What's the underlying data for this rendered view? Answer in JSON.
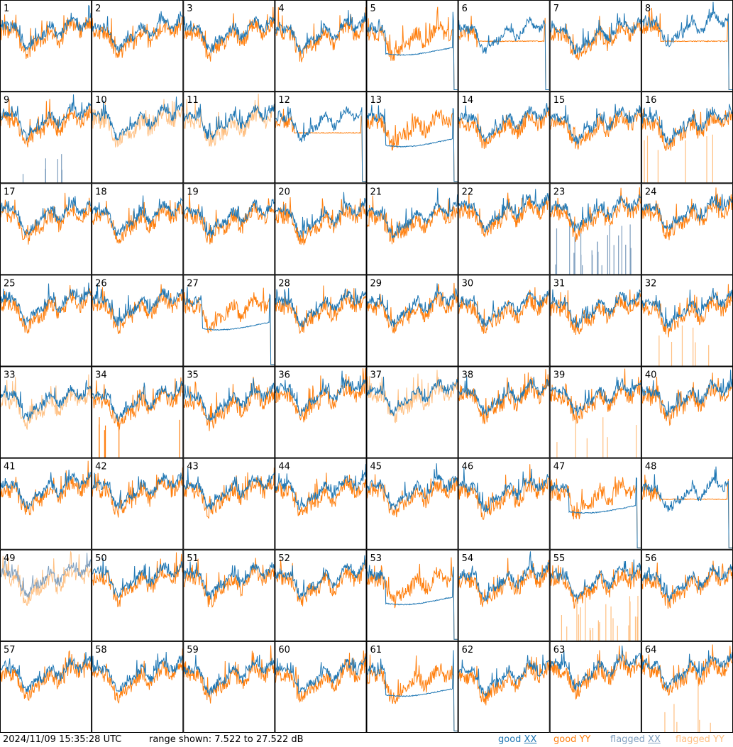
{
  "chart_data": {
    "type": "line",
    "layout": "small-multiples",
    "panel_count": 64,
    "panels": [
      "1",
      "2",
      "3",
      "4",
      "5",
      "6",
      "7",
      "8",
      "9",
      "10",
      "11",
      "12",
      "13",
      "14",
      "15",
      "16",
      "17",
      "18",
      "19",
      "20",
      "21",
      "22",
      "23",
      "24",
      "25",
      "26",
      "27",
      "28",
      "29",
      "30",
      "31",
      "32",
      "33",
      "34",
      "35",
      "36",
      "37",
      "38",
      "39",
      "40",
      "41",
      "42",
      "43",
      "44",
      "45",
      "46",
      "47",
      "48",
      "49",
      "50",
      "51",
      "52",
      "53",
      "54",
      "55",
      "56",
      "57",
      "58",
      "59",
      "60",
      "61",
      "62",
      "63",
      "64"
    ],
    "series": [
      {
        "name": "good XX",
        "color": "#1f77b4"
      },
      {
        "name": "good YY",
        "color": "#ff7f0e"
      },
      {
        "name": "flagged XX",
        "color": "#7f9fbf"
      },
      {
        "name": "flagged YY",
        "color": "#ffbf80"
      }
    ],
    "ylim": [
      7.522,
      27.522
    ],
    "yunit": "dB",
    "patterns": {
      "normal": [
        1,
        2,
        3,
        4,
        7,
        14,
        15,
        17,
        18,
        19,
        20,
        21,
        22,
        24,
        25,
        26,
        28,
        29,
        30,
        31,
        35,
        36,
        38,
        40,
        41,
        42,
        43,
        44,
        45,
        46,
        50,
        51,
        52,
        54,
        56,
        57,
        58,
        59,
        60,
        62,
        63
      ],
      "dropout_flat": [
        5,
        6,
        8,
        12,
        13,
        27,
        47,
        48,
        53,
        61
      ],
      "flagged_spikes": [
        9,
        16,
        23,
        32,
        34,
        39,
        55,
        64
      ],
      "flagged_traces": [
        10,
        11,
        33,
        37,
        49
      ]
    }
  },
  "footer": {
    "timestamp": "2024/11/09 15:35:28 UTC",
    "range_text": "range shown: 7.522 to 27.522 dB",
    "legend": {
      "good_xx_prefix": "good ",
      "good_xx_pol": "XX",
      "good_yy": "good YY",
      "flagged_xx_prefix": "flagged ",
      "flagged_xx_pol": "XX",
      "flagged_yy": "flagged YY"
    }
  }
}
